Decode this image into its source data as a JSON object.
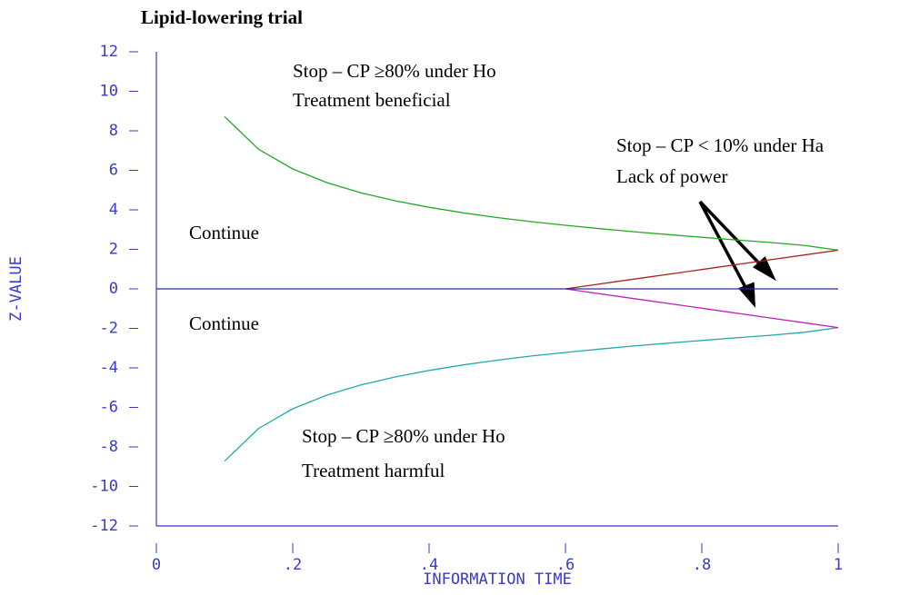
{
  "chart_data": {
    "type": "line",
    "title": "Lipid-lowering trial",
    "xlabel": "INFORMATION TIME",
    "ylabel": "Z-VALUE",
    "xlim": [
      0,
      1
    ],
    "ylim": [
      -12,
      12
    ],
    "xticks": [
      0,
      {
        "value": 0.2,
        "label": ".2"
      },
      {
        "value": 0.4,
        "label": ".4"
      },
      {
        "value": 0.6,
        "label": ".6"
      },
      {
        "value": 0.8,
        "label": ".8"
      },
      1
    ],
    "yticks": [
      -12,
      -10,
      -8,
      -6,
      -4,
      -2,
      0,
      2,
      4,
      6,
      8,
      10,
      12
    ],
    "axis_color": "#3a3acc",
    "annotations": [
      "Stop – CP ≥80% under Ho",
      "Treatment beneficial",
      "Stop – CP < 10% under Ha",
      "Lack of power",
      "Continue",
      "Continue",
      "Stop – CP ≥80% under Ho",
      "Treatment harmful"
    ],
    "series": [
      {
        "color": "#22aa22",
        "x": [
          0.1,
          0.15,
          0.2,
          0.25,
          0.3,
          0.35,
          0.4,
          0.45,
          0.5,
          0.55,
          0.6,
          0.65,
          0.7,
          0.75,
          0.8,
          0.85,
          0.9,
          0.95,
          1.0
        ],
        "values": [
          8.72,
          7.06,
          6.07,
          5.38,
          4.86,
          4.46,
          4.13,
          3.85,
          3.61,
          3.4,
          3.22,
          3.05,
          2.89,
          2.75,
          2.61,
          2.48,
          2.35,
          2.2,
          1.96
        ]
      },
      {
        "color": "#22aaaa",
        "x": [
          0.1,
          0.15,
          0.2,
          0.25,
          0.3,
          0.35,
          0.4,
          0.45,
          0.5,
          0.55,
          0.6,
          0.65,
          0.7,
          0.75,
          0.8,
          0.85,
          0.9,
          0.95,
          1.0
        ],
        "values": [
          -8.72,
          -7.06,
          -6.07,
          -5.38,
          -4.86,
          -4.46,
          -4.13,
          -3.85,
          -3.61,
          -3.4,
          -3.22,
          -3.05,
          -2.89,
          -2.75,
          -2.61,
          -2.48,
          -2.35,
          -2.2,
          -1.96
        ]
      },
      {
        "color": "#aa2222",
        "x": [
          0.6,
          0.7,
          0.8,
          0.9,
          1.0
        ],
        "values": [
          0,
          0.49,
          0.98,
          1.47,
          1.96
        ]
      },
      {
        "color": "#bb22bb",
        "x": [
          0.6,
          0.7,
          0.8,
          0.9,
          1.0
        ],
        "values": [
          0,
          -0.49,
          -0.98,
          -1.47,
          -1.96
        ]
      },
      {
        "color": "#2a2aaa",
        "x": [
          0,
          1
        ],
        "values": [
          0,
          0
        ]
      }
    ]
  }
}
